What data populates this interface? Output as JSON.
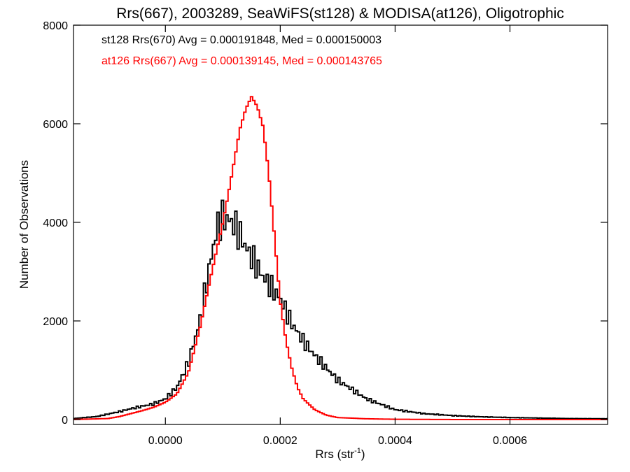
{
  "chart_data": {
    "type": "line",
    "title": "Rrs(667), 2003289, SeaWiFS(st128) & MODISA(at126), Oligotrophic",
    "xlabel": "Rrs (str",
    "xlabel_sup": "-1",
    "xlabel_end": ")",
    "ylabel": "Number of Observations",
    "xlim": [
      -0.00016,
      0.00077
    ],
    "ylim": [
      -100,
      8000
    ],
    "xticks": [
      0.0,
      0.0002,
      0.0004,
      0.0006
    ],
    "xtick_labels": [
      "0.0000",
      "0.0002",
      "0.0004",
      "0.0006"
    ],
    "yticks": [
      0,
      2000,
      4000,
      6000,
      8000
    ],
    "ytick_labels": [
      "0",
      "2000",
      "4000",
      "6000",
      "8000"
    ],
    "legend_position": "top-left",
    "series": [
      {
        "name": "st128 Rrs(670) Avg = 0.000191848, Med = 0.000150003",
        "color": "#000000",
        "style": "jagged-step",
        "x": [
          -0.00016,
          -0.00012,
          -0.0001,
          -8e-05,
          -6e-05,
          -4e-05,
          -2e-05,
          0.0,
          2e-05,
          4e-05,
          6e-05,
          7e-05,
          8e-05,
          9e-05,
          0.0001,
          0.00011,
          0.00012,
          0.00013,
          0.00014,
          0.00015,
          0.00016,
          0.00017,
          0.00018,
          0.0002,
          0.00022,
          0.00024,
          0.00026,
          0.00028,
          0.0003,
          0.00032,
          0.00035,
          0.0004,
          0.00045,
          0.0005,
          0.00055,
          0.0006,
          0.00065,
          0.0007,
          0.00077
        ],
        "y": [
          20,
          60,
          110,
          160,
          220,
          270,
          320,
          420,
          650,
          1150,
          2000,
          2650,
          3300,
          3900,
          4100,
          4050,
          3950,
          3750,
          3500,
          3300,
          3100,
          2900,
          2750,
          2450,
          1950,
          1600,
          1300,
          1050,
          800,
          650,
          420,
          200,
          120,
          80,
          55,
          40,
          30,
          20,
          15
        ]
      },
      {
        "name": "at126 Rrs(667) Avg = 0.000139145, Med = 0.000143765",
        "color": "#ff0000",
        "style": "step",
        "x": [
          -0.00016,
          -0.0001,
          -8e-05,
          -6e-05,
          -4e-05,
          -2e-05,
          0.0,
          2e-05,
          4e-05,
          6e-05,
          8e-05,
          0.0001,
          0.00011,
          0.00012,
          0.00013,
          0.00014,
          0.00015,
          0.00016,
          0.00017,
          0.00018,
          0.00019,
          0.0002,
          0.00021,
          0.00022,
          0.00023,
          0.00024,
          0.00026,
          0.00028,
          0.0003,
          0.00035,
          0.0004,
          0.0005,
          0.00077
        ],
        "y": [
          0,
          20,
          60,
          120,
          180,
          250,
          350,
          520,
          950,
          1850,
          2950,
          4000,
          4600,
          5250,
          5900,
          6300,
          6550,
          6350,
          5950,
          5000,
          3700,
          2400,
          1600,
          1050,
          650,
          420,
          200,
          90,
          40,
          15,
          5,
          0,
          0
        ]
      }
    ]
  }
}
